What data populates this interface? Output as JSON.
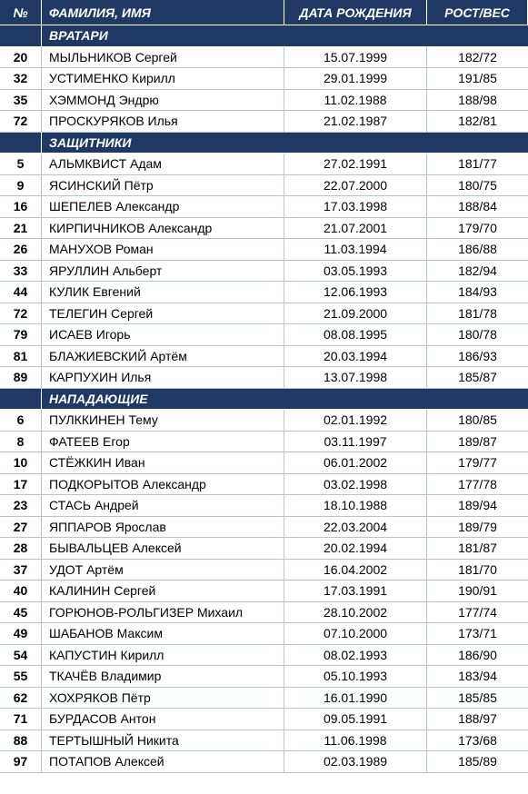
{
  "table": {
    "header": [
      "№",
      "ФАМИЛИЯ, ИМЯ",
      "ДАТА РОЖДЕНИЯ",
      "РОСТ/ВЕС"
    ],
    "sections": [
      {
        "title": "ВРАТАРИ",
        "rows": [
          [
            "20",
            "МЫЛЬНИКОВ Сергей",
            "15.07.1999",
            "182/72"
          ],
          [
            "32",
            "УСТИМЕНКО Кирилл",
            "29.01.1999",
            "191/85"
          ],
          [
            "35",
            "ХЭММОНД Эндрю",
            "11.02.1988",
            "188/98"
          ],
          [
            "72",
            "ПРОСКУРЯКОВ Илья",
            "21.02.1987",
            "182/81"
          ]
        ]
      },
      {
        "title": "ЗАЩИТНИКИ",
        "rows": [
          [
            "5",
            "АЛЬМКВИСТ Адам",
            "27.02.1991",
            "181/77"
          ],
          [
            "9",
            "ЯСИНСКИЙ Пётр",
            "22.07.2000",
            "180/75"
          ],
          [
            "16",
            "ШЕПЕЛЕВ Александр",
            "17.03.1998",
            "188/84"
          ],
          [
            "21",
            "КИРПИЧНИКОВ Александр",
            "21.07.2001",
            "179/70"
          ],
          [
            "26",
            "МАНУХОВ Роман",
            "11.03.1994",
            "186/88"
          ],
          [
            "33",
            "ЯРУЛЛИН Альберт",
            "03.05.1993",
            "182/94"
          ],
          [
            "44",
            "КУЛИК Евгений",
            "12.06.1993",
            "184/93"
          ],
          [
            "72",
            "ТЕЛЕГИН Сергей",
            "21.09.2000",
            "181/78"
          ],
          [
            "79",
            "ИСАЕВ Игорь",
            "08.08.1995",
            "180/78"
          ],
          [
            "81",
            "БЛАЖИЕВСКИЙ Артём",
            "20.03.1994",
            "186/93"
          ],
          [
            "89",
            "КАРПУХИН Илья",
            "13.07.1998",
            "185/87"
          ]
        ]
      },
      {
        "title": "НАПАДАЮЩИЕ",
        "rows": [
          [
            "6",
            "ПУЛККИНЕН Тему",
            "02.01.1992",
            "180/85"
          ],
          [
            "8",
            "ФАТЕЕВ Егор",
            "03.11.1997",
            "189/87"
          ],
          [
            "10",
            "СТЁЖКИН Иван",
            "06.01.2002",
            "179/77"
          ],
          [
            "17",
            "ПОДКОРЫТОВ Александр",
            "03.02.1998",
            "177/78"
          ],
          [
            "23",
            "СТАСЬ Андрей",
            "18.10.1988",
            "189/94"
          ],
          [
            "27",
            "ЯППАРОВ Ярослав",
            "22.03.2004",
            "189/79"
          ],
          [
            "28",
            "БЫВАЛЬЦЕВ Алексей",
            "20.02.1994",
            "181/87"
          ],
          [
            "37",
            "УДОТ Артём",
            "16.04.2002",
            "181/70"
          ],
          [
            "40",
            "КАЛИНИН Сергей",
            "17.03.1991",
            "190/91"
          ],
          [
            "45",
            "ГОРЮНОВ-РОЛЬГИЗЕР Михаил",
            "28.10.2002",
            "177/74"
          ],
          [
            "49",
            "ШАБАНОВ Максим",
            "07.10.2000",
            "173/71"
          ],
          [
            "54",
            "КАПУСТИН Кирилл",
            "08.02.1993",
            "186/90"
          ],
          [
            "55",
            "ТКАЧЁВ Владимир",
            "05.10.1993",
            "183/94"
          ],
          [
            "62",
            "ХОХРЯКОВ Пётр",
            "16.01.1990",
            "185/85"
          ],
          [
            "71",
            "БУРДАСОВ Антон",
            "09.05.1991",
            "188/97"
          ],
          [
            "88",
            "ТЕРТЫШНЫЙ Никита",
            "11.06.1998",
            "173/68"
          ],
          [
            "97",
            "ПОТАПОВ Алексей",
            "02.03.1989",
            "185/89"
          ]
        ]
      }
    ]
  }
}
